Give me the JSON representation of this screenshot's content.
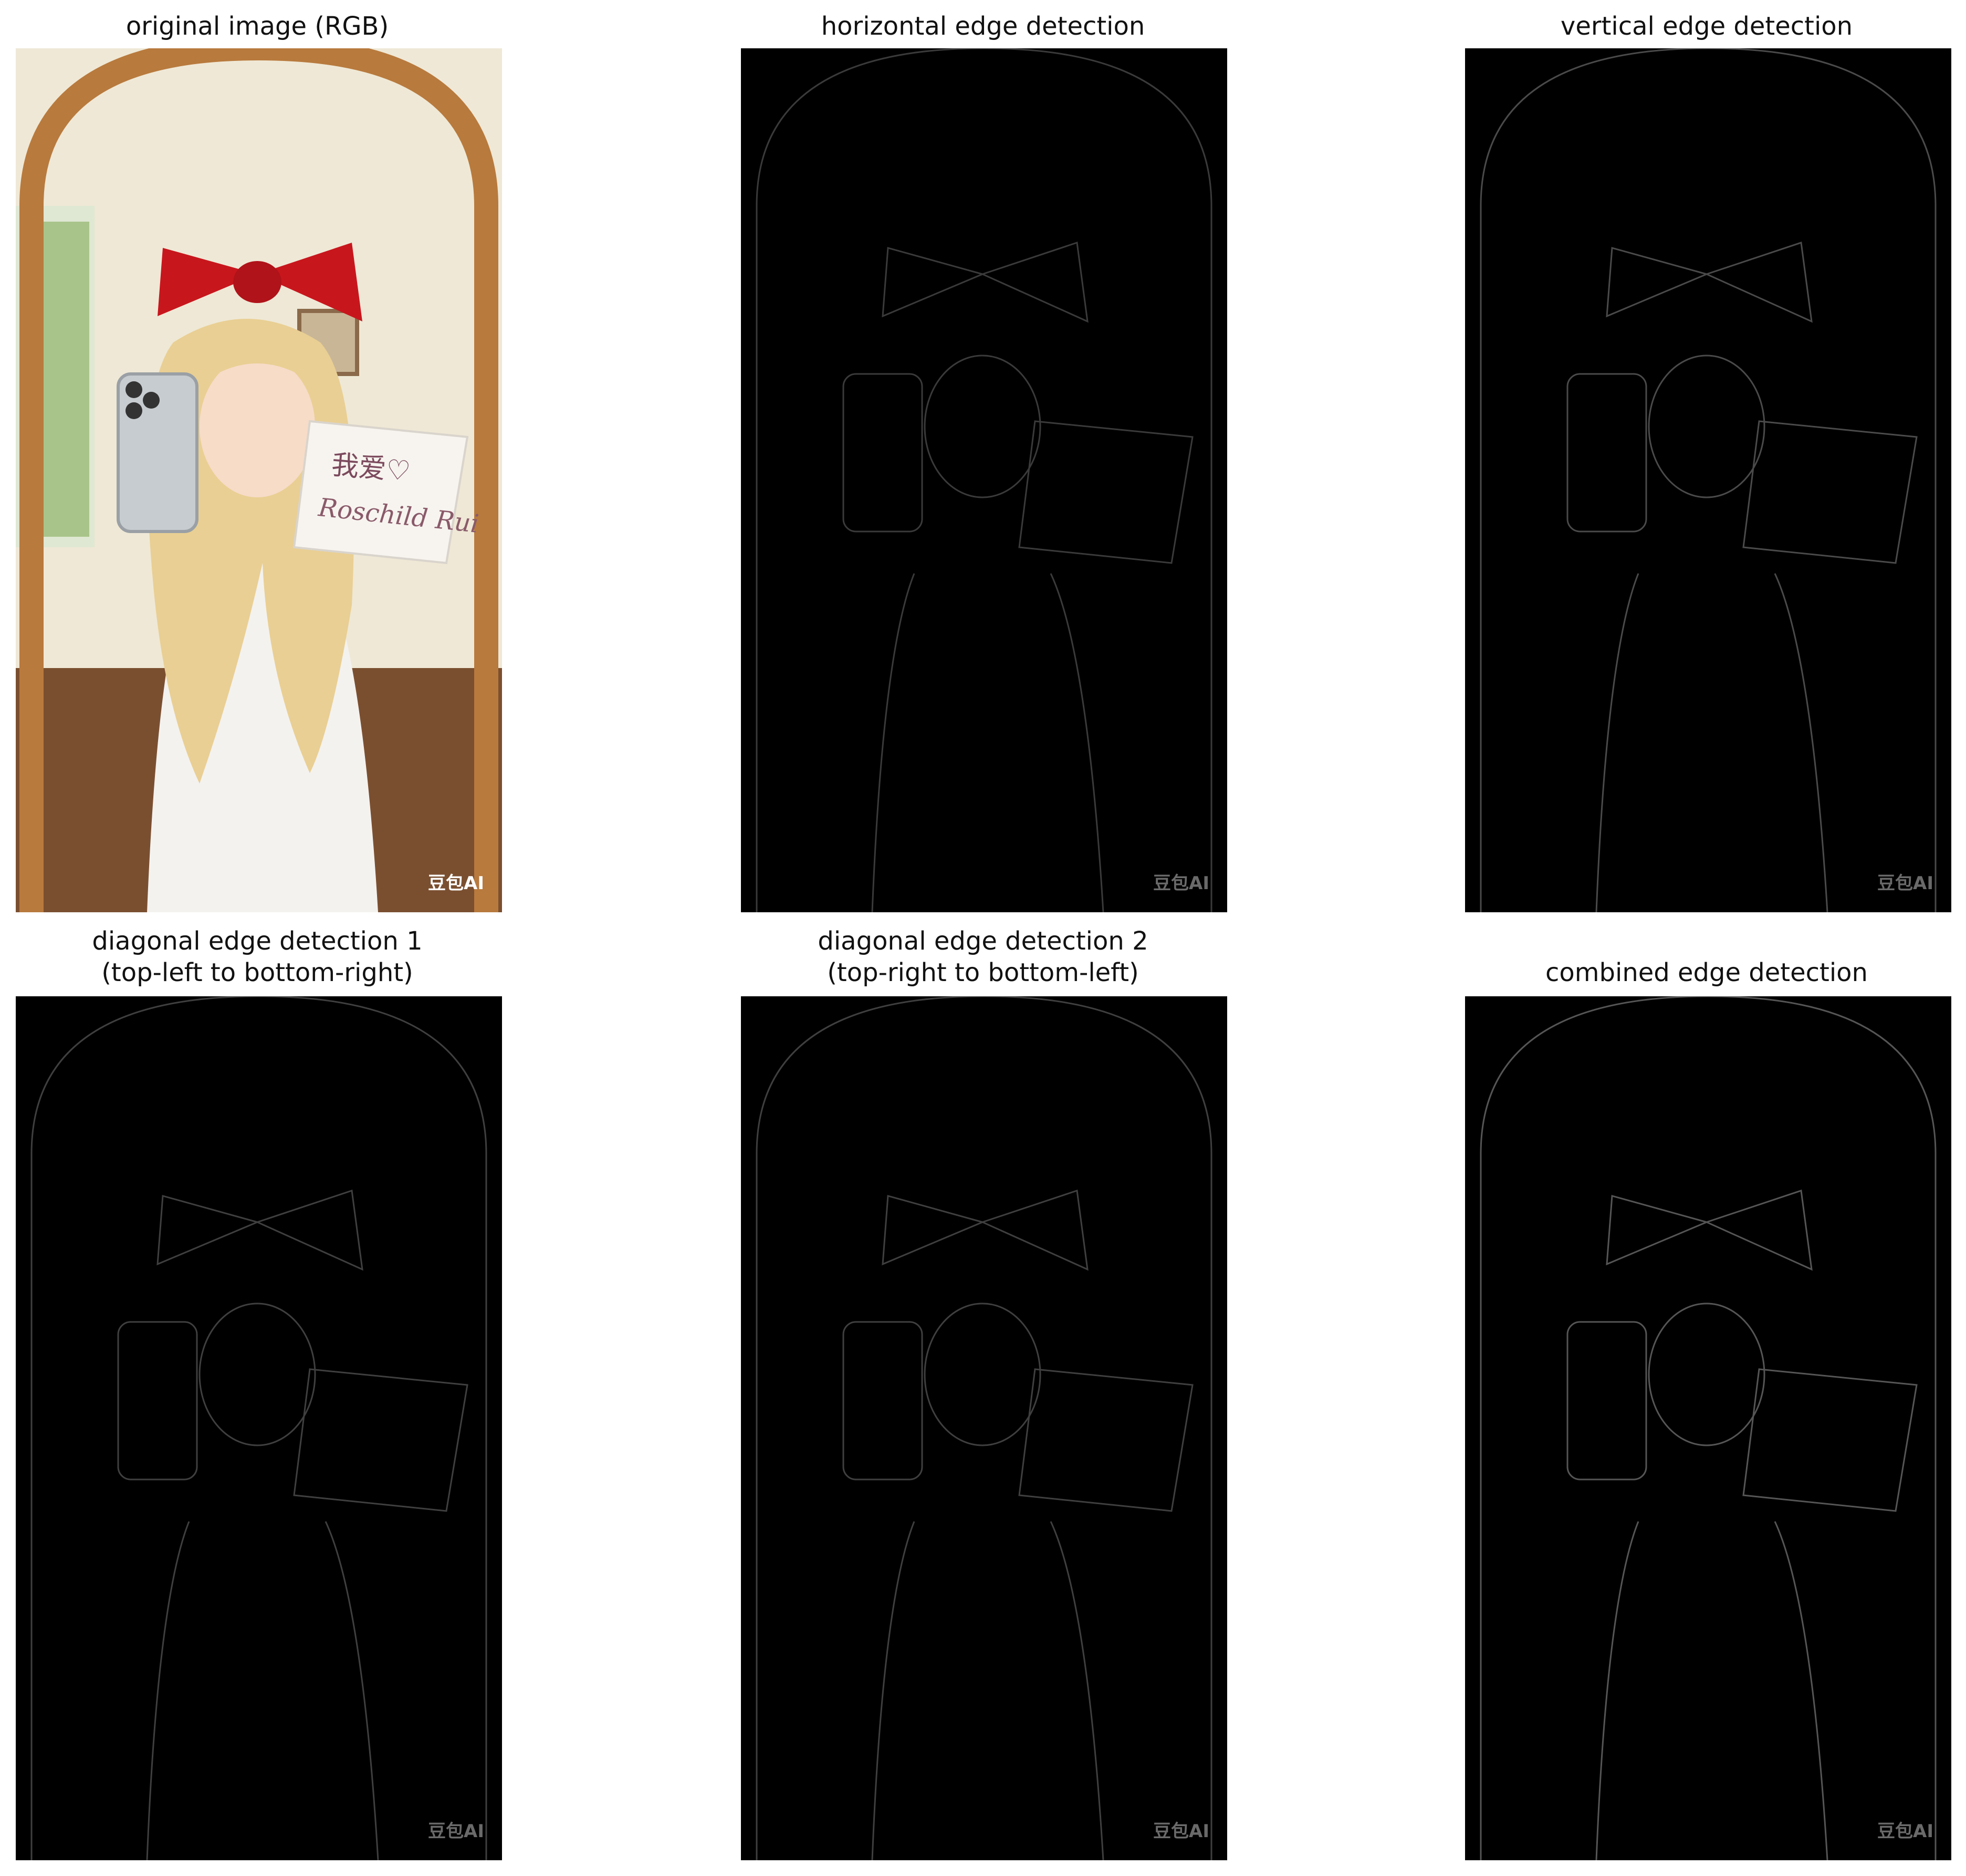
{
  "figure": {
    "panels": [
      {
        "id": "original",
        "title": "original image (RGB)",
        "kind": "rgb"
      },
      {
        "id": "horizontal",
        "title": "horizontal edge detection",
        "kind": "edge"
      },
      {
        "id": "vertical",
        "title": "vertical edge detection",
        "kind": "edge"
      },
      {
        "id": "diag1",
        "title_line1": "diagonal edge detection 1",
        "title_line2": "(top-left to bottom-right)",
        "kind": "edge"
      },
      {
        "id": "diag2",
        "title_line1": "diagonal edge detection 2",
        "title_line2": "(top-right to bottom-left)",
        "kind": "edge"
      },
      {
        "id": "combined",
        "title": "combined edge detection",
        "kind": "edge"
      }
    ],
    "photo_text": {
      "note_line1": "我爱♡",
      "note_line2": "Roschild Rui",
      "watermark": "豆包AI"
    },
    "colors": {
      "background": "#ffffff",
      "edge_background": "#000000",
      "edge_stroke": "#8a8a8a",
      "bow": "#c8161d",
      "hair": "#e9cf93",
      "dress": "#f4f2ef",
      "wall": "#efe8d6",
      "mirror_frame": "#b87a3d"
    }
  }
}
